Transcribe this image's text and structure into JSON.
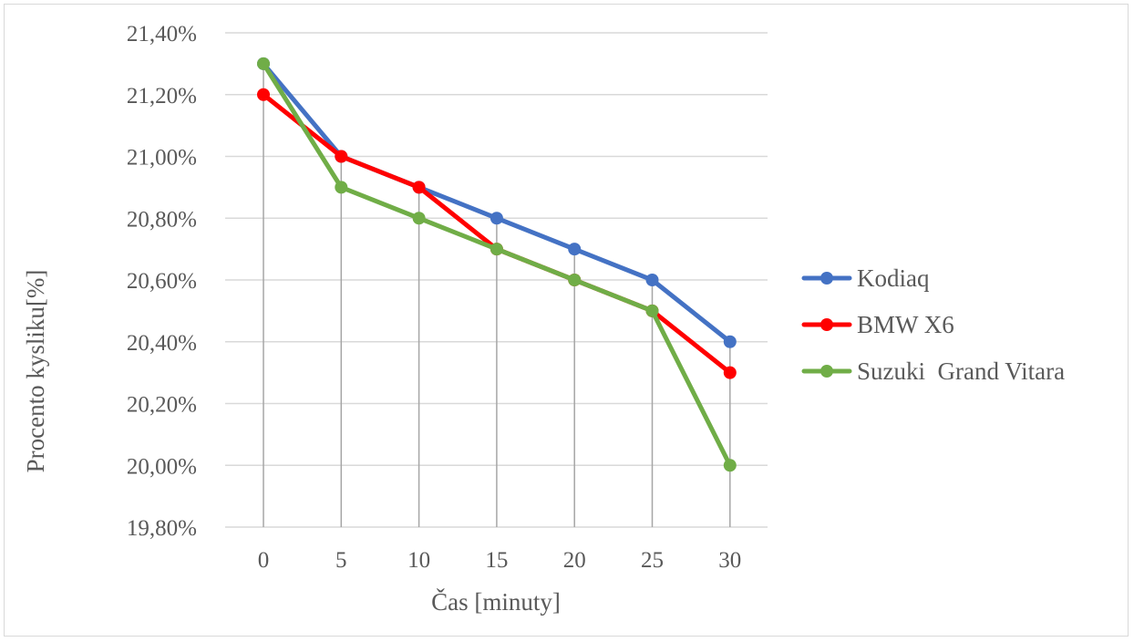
{
  "chart_data": {
    "type": "line",
    "title": "",
    "xlabel": "Čas [minuty]",
    "ylabel": "Procento kysliku[%]",
    "x": [
      0,
      5,
      10,
      15,
      20,
      25,
      30
    ],
    "x_tick_labels": [
      "0",
      "5",
      "10",
      "15",
      "20",
      "25",
      "30"
    ],
    "ylim": [
      19.8,
      21.4
    ],
    "y_ticks": [
      19.8,
      20.0,
      20.2,
      20.4,
      20.6,
      20.8,
      21.0,
      21.2,
      21.4
    ],
    "y_tick_labels": [
      "19,80%",
      "20,00%",
      "20,20%",
      "20,40%",
      "20,60%",
      "20,80%",
      "21,00%",
      "21,20%",
      "21,40%"
    ],
    "grid": "horizontal",
    "drop_lines": true,
    "legend_position": "right",
    "series": [
      {
        "name": "Kodiaq",
        "color": "#4472c4",
        "values": [
          21.3,
          21.0,
          20.9,
          20.8,
          20.7,
          20.6,
          20.4
        ]
      },
      {
        "name": "BMW X6",
        "color": "#ff0000",
        "values": [
          21.2,
          21.0,
          20.9,
          20.7,
          20.6,
          20.5,
          20.3
        ]
      },
      {
        "name": "Suzuki  Grand Vitara",
        "color": "#70ad47",
        "values": [
          21.3,
          20.9,
          20.8,
          20.7,
          20.6,
          20.5,
          20.0
        ]
      }
    ]
  }
}
